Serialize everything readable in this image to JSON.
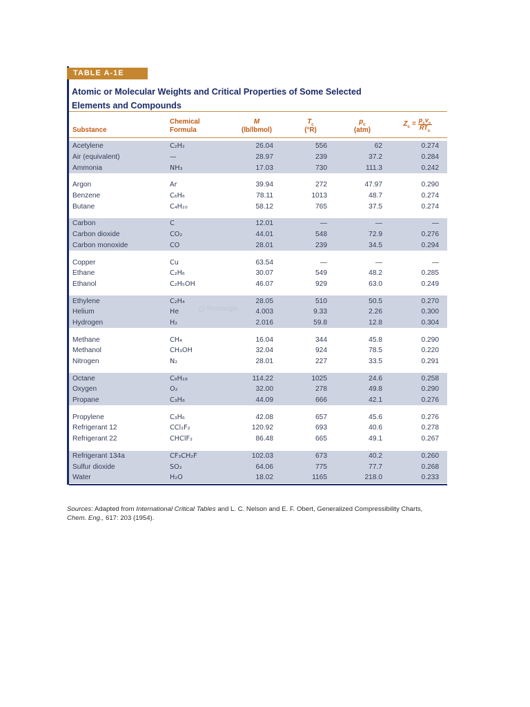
{
  "page": {
    "badge": "TABLE A-1E",
    "title_line1": "Atomic or Molecular Weights and Critical Properties of Some Selected",
    "title_line2": "Elements and Compounds",
    "watermark": "Rectangle"
  },
  "colors": {
    "accent_orange": "#c05a13",
    "badge_gold": "#c5862f",
    "navy_rule": "#1c2b66",
    "row_shade": "#cdd3e0",
    "body_text": "#313c57"
  },
  "table": {
    "headers": {
      "substance": "Substance",
      "formula_line1": "Chemical",
      "formula_line2": "Formula",
      "m_symbol": "M",
      "m_units": "(lb/lbmol)",
      "tc_symbol": "T",
      "tc_sub": "c",
      "tc_units": "(°R)",
      "pc_symbol": "p",
      "pc_sub": "c",
      "pc_units": "(atm)",
      "zc_symbol": "Z",
      "zc_sub": "c",
      "zc_equals": "=",
      "zc_num_p": "p",
      "zc_num_p_sub": "c",
      "zc_num_v": "v",
      "zc_num_v_sub": "c",
      "zc_den": "RT",
      "zc_den_sub": "c"
    },
    "groups": [
      {
        "shaded": true,
        "rows": [
          {
            "substance": "Acetylene",
            "formula": "C₂H₂",
            "m": "26.04",
            "tc": "556",
            "pc": "62",
            "zc": "0.274"
          },
          {
            "substance": "Air (equivalent)",
            "formula": "—",
            "m": "28.97",
            "tc": "239",
            "pc": "37.2",
            "zc": "0.284"
          },
          {
            "substance": "Ammonia",
            "formula": "NH₃",
            "m": "17.03",
            "tc": "730",
            "pc": "111.3",
            "zc": "0.242"
          }
        ]
      },
      {
        "shaded": false,
        "rows": [
          {
            "substance": "Argon",
            "formula": "Ar",
            "m": "39.94",
            "tc": "272",
            "pc": "47.97",
            "zc": "0.290"
          },
          {
            "substance": "Benzene",
            "formula": "C₆H₆",
            "m": "78.11",
            "tc": "1013",
            "pc": "48.7",
            "zc": "0.274"
          },
          {
            "substance": "Butane",
            "formula": "C₄H₁₀",
            "m": "58.12",
            "tc": "765",
            "pc": "37.5",
            "zc": "0.274"
          }
        ]
      },
      {
        "shaded": true,
        "rows": [
          {
            "substance": "Carbon",
            "formula": "C",
            "m": "12.01",
            "tc": "—",
            "pc": "—",
            "zc": "—"
          },
          {
            "substance": "Carbon dioxide",
            "formula": "CO₂",
            "m": "44.01",
            "tc": "548",
            "pc": "72.9",
            "zc": "0.276"
          },
          {
            "substance": "Carbon monoxide",
            "formula": "CO",
            "m": "28.01",
            "tc": "239",
            "pc": "34.5",
            "zc": "0.294"
          }
        ]
      },
      {
        "shaded": false,
        "rows": [
          {
            "substance": "Copper",
            "formula": "Cu",
            "m": "63.54",
            "tc": "—",
            "pc": "—",
            "zc": "—"
          },
          {
            "substance": "Ethane",
            "formula": "C₂H₆",
            "m": "30.07",
            "tc": "549",
            "pc": "48.2",
            "zc": "0.285"
          },
          {
            "substance": "Ethanol",
            "formula": "C₂H₅OH",
            "m": "46.07",
            "tc": "929",
            "pc": "63.0",
            "zc": "0.249"
          }
        ]
      },
      {
        "shaded": true,
        "rows": [
          {
            "substance": "Ethylene",
            "formula": "C₂H₄",
            "m": "28.05",
            "tc": "510",
            "pc": "50.5",
            "zc": "0.270"
          },
          {
            "substance": "Helium",
            "formula": "He",
            "m": "4.003",
            "tc": "9.33",
            "pc": "2.26",
            "zc": "0.300"
          },
          {
            "substance": "Hydrogen",
            "formula": "H₂",
            "m": "2.016",
            "tc": "59.8",
            "pc": "12.8",
            "zc": "0.304"
          }
        ]
      },
      {
        "shaded": false,
        "rows": [
          {
            "substance": "Methane",
            "formula": "CH₄",
            "m": "16.04",
            "tc": "344",
            "pc": "45.8",
            "zc": "0.290"
          },
          {
            "substance": "Methanol",
            "formula": "CH₃OH",
            "m": "32.04",
            "tc": "924",
            "pc": "78.5",
            "zc": "0.220"
          },
          {
            "substance": "Nitrogen",
            "formula": "N₂",
            "m": "28.01",
            "tc": "227",
            "pc": "33.5",
            "zc": "0.291"
          }
        ]
      },
      {
        "shaded": true,
        "rows": [
          {
            "substance": "Octane",
            "formula": "C₈H₁₈",
            "m": "114.22",
            "tc": "1025",
            "pc": "24.6",
            "zc": "0.258"
          },
          {
            "substance": "Oxygen",
            "formula": "O₂",
            "m": "32.00",
            "tc": "278",
            "pc": "49.8",
            "zc": "0.290"
          },
          {
            "substance": "Propane",
            "formula": "C₃H₈",
            "m": "44.09",
            "tc": "666",
            "pc": "42.1",
            "zc": "0.276"
          }
        ]
      },
      {
        "shaded": false,
        "rows": [
          {
            "substance": "Propylene",
            "formula": "C₃H₆",
            "m": "42.08",
            "tc": "657",
            "pc": "45.6",
            "zc": "0.276"
          },
          {
            "substance": "Refrigerant 12",
            "formula": "CCl₂F₂",
            "m": "120.92",
            "tc": "693",
            "pc": "40.6",
            "zc": "0.278"
          },
          {
            "substance": "Refrigerant 22",
            "formula": "CHClF₂",
            "m": "86.48",
            "tc": "665",
            "pc": "49.1",
            "zc": "0.267"
          }
        ]
      },
      {
        "shaded": true,
        "rows": [
          {
            "substance": "Refrigerant 134a",
            "formula": "CF₃CH₂F",
            "m": "102.03",
            "tc": "673",
            "pc": "40.2",
            "zc": "0.260"
          },
          {
            "substance": "Sulfur dioxide",
            "formula": "SO₂",
            "m": "64.06",
            "tc": "775",
            "pc": "77.7",
            "zc": "0.268"
          },
          {
            "substance": "Water",
            "formula": "H₂O",
            "m": "18.02",
            "tc": "1165",
            "pc": "218.0",
            "zc": "0.233"
          }
        ]
      }
    ]
  },
  "sources": {
    "label": "Sources:",
    "t1": " Adapted from ",
    "italic1": "International Critical Tables",
    "t2": " and L. C. Nelson and E. F. Obert, Generalized Compressibility Charts, ",
    "italic2": "Chem. Eng.,",
    "t3": " 617: 203 (1954)."
  }
}
